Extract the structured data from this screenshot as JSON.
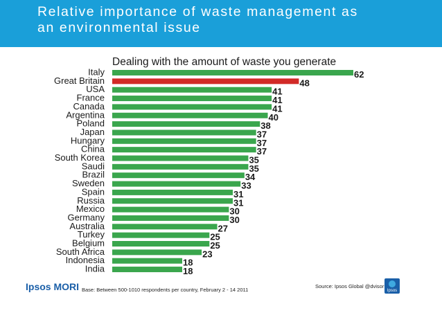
{
  "header": {
    "title_line1": "Relative importance of waste management as",
    "title_line2": "an environmental issue"
  },
  "footer": {
    "logo_text": "Ipsos MORI",
    "base_note": "Base: Between 500-1010 respondents per country, February 2 - 14 2011",
    "source": "Source: Ipsos Global @dvisor",
    "badge_text": "Ipsos"
  },
  "colors": {
    "header": "#1a9fd9",
    "bar": "#3aa64d",
    "highlight": "#d22a27"
  },
  "chart_data": {
    "type": "bar",
    "orientation": "horizontal",
    "title": "Dealing with the amount of waste you generate",
    "categories": [
      "Italy",
      "Great Britain",
      "USA",
      "France",
      "Canada",
      "Argentina",
      "Poland",
      "Japan",
      "Hungary",
      "China",
      "South Korea",
      "Saudi",
      "Brazil",
      "Sweden",
      "Spain",
      "Russia",
      "Mexico",
      "Germany",
      "Australia",
      "Turkey",
      "Belgium",
      "South Africa",
      "Indonesia",
      "India"
    ],
    "values": [
      62,
      48,
      41,
      41,
      41,
      40,
      38,
      37,
      37,
      37,
      35,
      35,
      34,
      33,
      31,
      31,
      30,
      30,
      27,
      25,
      25,
      23,
      18,
      18
    ],
    "highlight": "Great Britain",
    "xlim": [
      0,
      62
    ],
    "xlabel": "",
    "ylabel": "",
    "grid": false
  }
}
